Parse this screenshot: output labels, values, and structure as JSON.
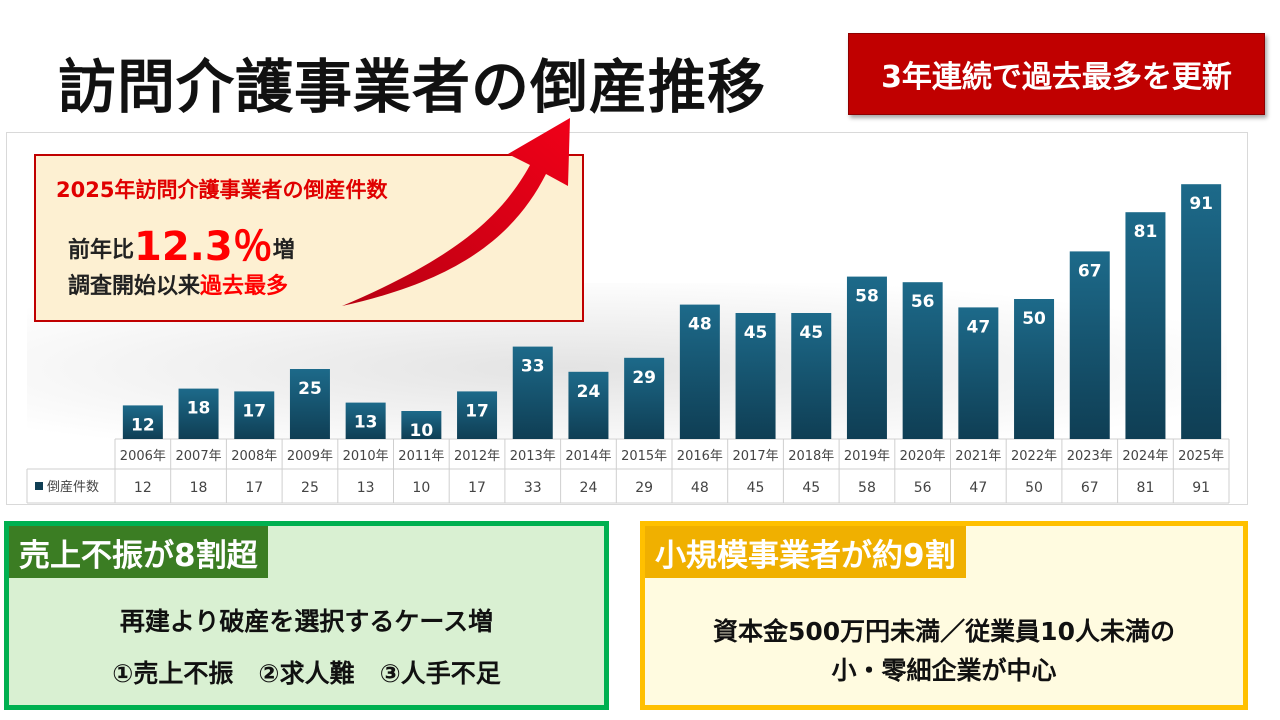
{
  "title": "訪問介護事業者の倒産推移",
  "badge": "3年連続で過去最多を更新",
  "callout": {
    "title": "2025年訪問介護事業者の倒産件数",
    "line1_prefix": "前年比",
    "line1_value": "12.3％",
    "line1_suffix": "増",
    "line2_prefix": "調査開始以来",
    "line2_highlight": "過去最多"
  },
  "chart_data": {
    "type": "bar",
    "categories": [
      "2006年",
      "2007年",
      "2008年",
      "2009年",
      "2010年",
      "2011年",
      "2012年",
      "2013年",
      "2014年",
      "2015年",
      "2016年",
      "2017年",
      "2018年",
      "2019年",
      "2020年",
      "2021年",
      "2022年",
      "2023年",
      "2024年",
      "2025年"
    ],
    "series": [
      {
        "name": "倒産件数",
        "values": [
          12,
          18,
          17,
          25,
          13,
          10,
          17,
          33,
          24,
          29,
          48,
          45,
          45,
          58,
          56,
          47,
          50,
          67,
          81,
          91
        ]
      }
    ],
    "data_labels": true,
    "data_table": true,
    "grid": false,
    "ylim": [
      0,
      95
    ],
    "colors": {
      "bar_top": "#1d6a8a",
      "bar_bottom": "#0f3e54",
      "label": "#ffffff"
    }
  },
  "left_box": {
    "tag": "売上不振が8割超",
    "line1": "再建より破産を選択するケース増",
    "line2": "①売上不振　②求人難　③人手不足",
    "colors": {
      "border": "#00b050",
      "tag_bg": "#3b7d23",
      "bg": "#d9f0d2"
    }
  },
  "right_box": {
    "tag": "小規模事業者が約9割",
    "line1": "資本金500万円未満／従業員10人未満の",
    "line2": "小・零細企業が中心",
    "colors": {
      "border": "#ffc000",
      "tag_bg": "#f0b000",
      "bg": "#fffbe0"
    }
  }
}
